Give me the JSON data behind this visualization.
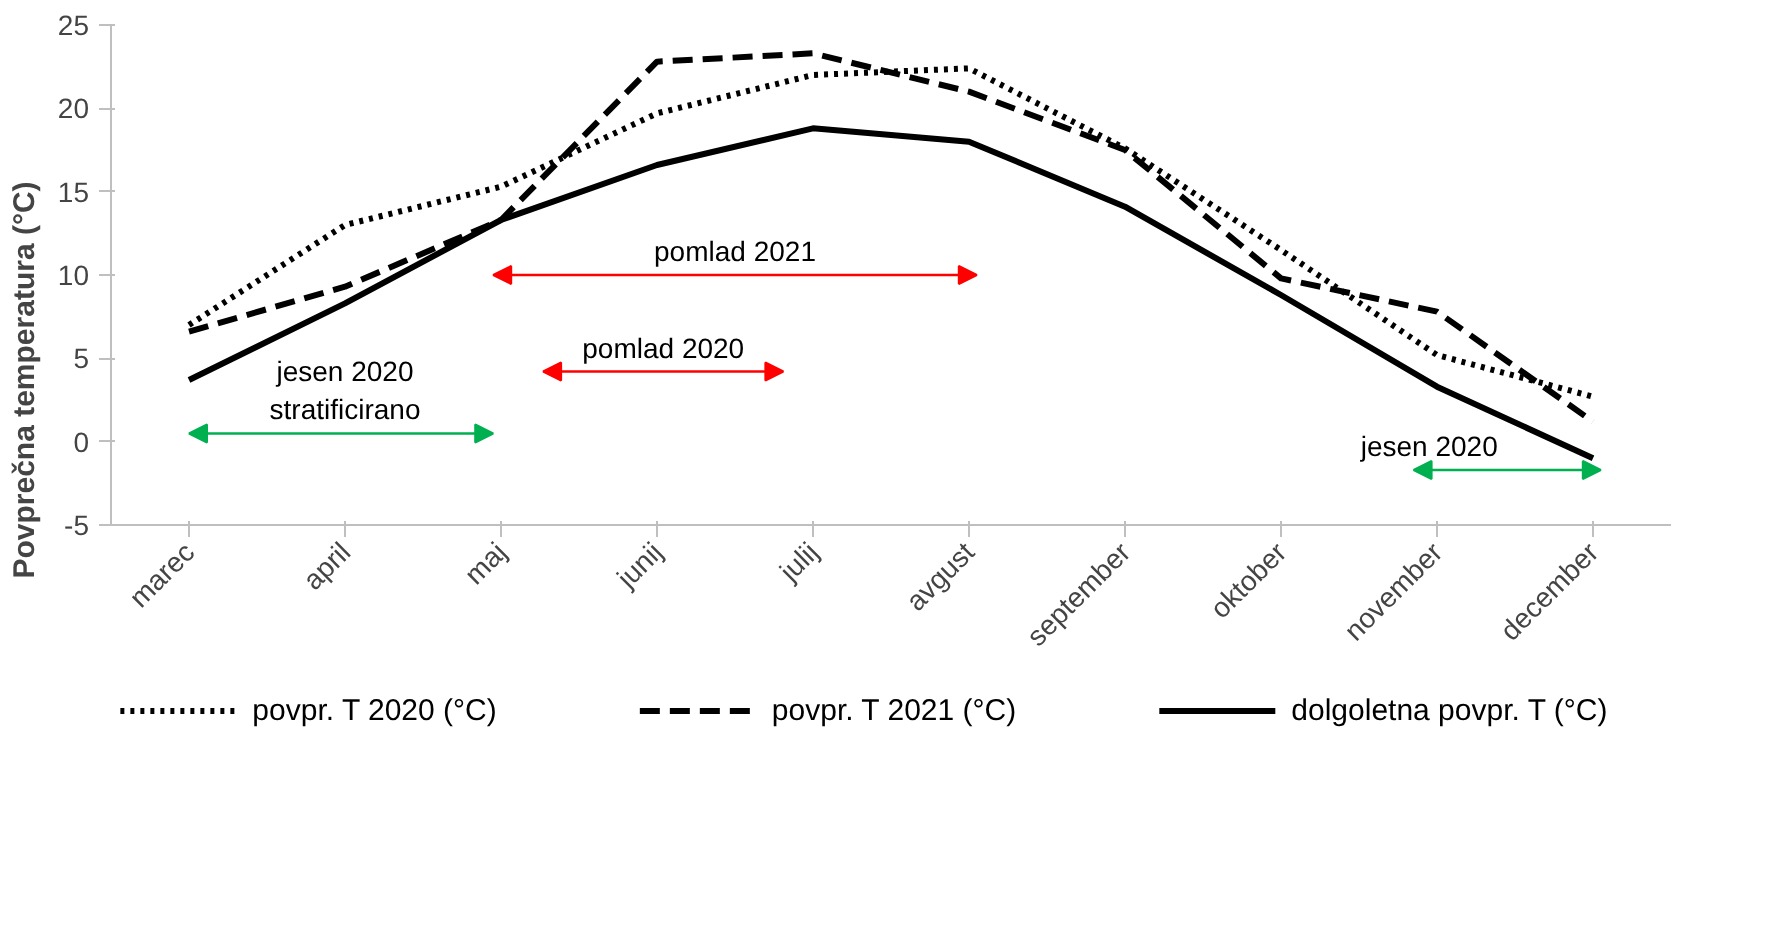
{
  "chart_data": {
    "type": "line",
    "ylabel": "Povprečna temperatura (°C)",
    "categories": [
      "marec",
      "april",
      "maj",
      "junij",
      "julij",
      "avgust",
      "september",
      "oktober",
      "november",
      "december"
    ],
    "series": [
      {
        "name": "povpr. T 2020 (°C)",
        "color": "#000000",
        "line_style": "dotted",
        "values": [
          7.0,
          13.0,
          15.3,
          19.7,
          22.0,
          22.4,
          17.6,
          11.5,
          5.2,
          2.7
        ]
      },
      {
        "name": "povpr. T 2021 (°C)",
        "color": "#000000",
        "line_style": "dashed",
        "values": [
          6.6,
          9.3,
          13.3,
          22.8,
          23.3,
          21.0,
          17.5,
          9.8,
          7.8,
          1.2
        ]
      },
      {
        "name": "dolgoletna povpr. T (°C)",
        "color": "#000000",
        "line_style": "solid",
        "values": [
          3.7,
          8.3,
          13.3,
          16.6,
          18.8,
          18.0,
          14.1,
          8.8,
          3.3,
          -1.0
        ]
      }
    ],
    "ylim": [
      -5,
      25
    ],
    "yticks": [
      -5,
      0,
      5,
      10,
      15,
      20,
      25
    ],
    "legend": "bottom",
    "marker": "none",
    "annotations": [
      "jesen 2020\nstratificirano",
      "pomlad 2021",
      "pomlad 2020",
      "jesen 2020"
    ]
  }
}
